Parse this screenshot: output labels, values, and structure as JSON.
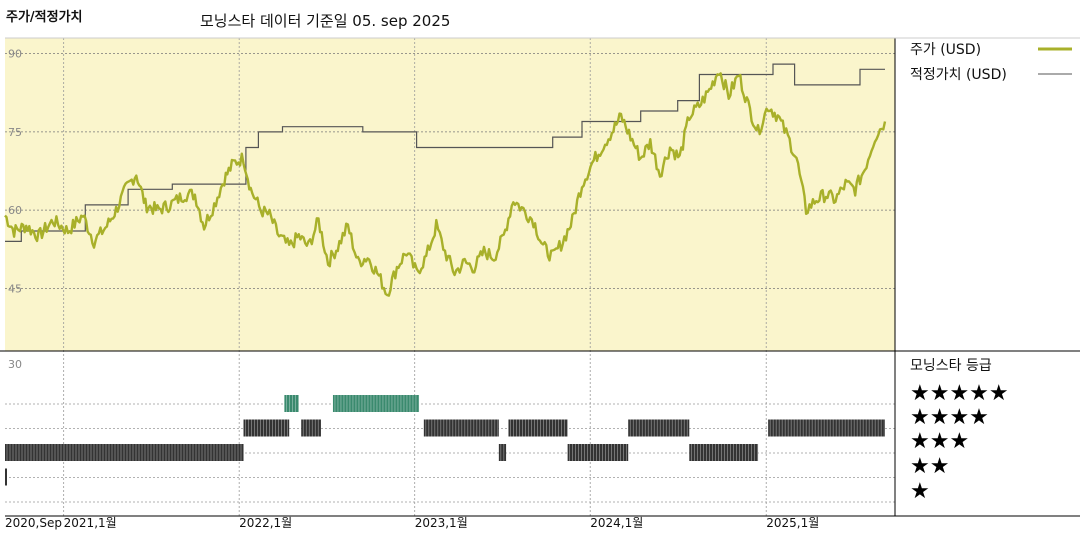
{
  "title": "주가/적정가치",
  "subtitle": "모닝스타 데이터 기준일 05. sep 2025",
  "legend": {
    "price_label": "주가 (USD)",
    "fair_label": "적정가치 (USD)",
    "rating_title": "모닝스타 등급",
    "stars": [
      "★★★★★",
      "★★★★",
      "★★★",
      "★★",
      "★"
    ]
  },
  "colors": {
    "price": "#a8b02a",
    "fair": "#555555",
    "plot_bg": "#faf5cc",
    "rating_dark": "#333333",
    "rating_teal": "#3a8a6e"
  },
  "chart_data": {
    "type": "line",
    "x_range": [
      "2020-09-01",
      "2025-09-05"
    ],
    "x_ticks": [
      {
        "date": "2020-09-01",
        "label": "2020,Sep"
      },
      {
        "date": "2021-01-01",
        "label": "2021,1월"
      },
      {
        "date": "2022-01-01",
        "label": "2022,1월"
      },
      {
        "date": "2023-01-01",
        "label": "2023,1월"
      },
      {
        "date": "2024-01-01",
        "label": "2024,1월"
      },
      {
        "date": "2025-01-01",
        "label": "2025,1월"
      }
    ],
    "y_ticks": [
      {
        "value": 90,
        "label": "90"
      },
      {
        "value": 75,
        "label": "75"
      },
      {
        "value": 60,
        "label": "60"
      },
      {
        "value": 45,
        "label": "45"
      }
    ],
    "ylim": [
      33,
      93
    ],
    "series": [
      {
        "name": "주가 (USD)",
        "points": [
          [
            "2020-09-01",
            59
          ],
          [
            "2020-09-20",
            56
          ],
          [
            "2020-10-15",
            57
          ],
          [
            "2020-11-10",
            55
          ],
          [
            "2020-12-10",
            58
          ],
          [
            "2021-01-10",
            56
          ],
          [
            "2021-02-10",
            59
          ],
          [
            "2021-03-05",
            54
          ],
          [
            "2021-04-01",
            57
          ],
          [
            "2021-04-20",
            60
          ],
          [
            "2021-05-10",
            64
          ],
          [
            "2021-06-01",
            67
          ],
          [
            "2021-06-20",
            61
          ],
          [
            "2021-07-15",
            60
          ],
          [
            "2021-08-10",
            61
          ],
          [
            "2021-09-10",
            63
          ],
          [
            "2021-10-01",
            63
          ],
          [
            "2021-10-20",
            57
          ],
          [
            "2021-11-10",
            61
          ],
          [
            "2021-12-01",
            66
          ],
          [
            "2021-12-20",
            69
          ],
          [
            "2022-01-10",
            70
          ],
          [
            "2022-01-25",
            64
          ],
          [
            "2022-02-15",
            60
          ],
          [
            "2022-03-05",
            59
          ],
          [
            "2022-03-25",
            55
          ],
          [
            "2022-04-15",
            53
          ],
          [
            "2022-05-05",
            55
          ],
          [
            "2022-05-25",
            53
          ],
          [
            "2022-06-15",
            58
          ],
          [
            "2022-07-05",
            50
          ],
          [
            "2022-07-25",
            53
          ],
          [
            "2022-08-15",
            57
          ],
          [
            "2022-09-05",
            50
          ],
          [
            "2022-09-25",
            51
          ],
          [
            "2022-10-15",
            48
          ],
          [
            "2022-11-05",
            44
          ],
          [
            "2022-11-25",
            49
          ],
          [
            "2022-12-15",
            52
          ],
          [
            "2023-01-05",
            48
          ],
          [
            "2023-01-25",
            51
          ],
          [
            "2023-02-15",
            57
          ],
          [
            "2023-03-05",
            52
          ],
          [
            "2023-03-25",
            48
          ],
          [
            "2023-04-15",
            50
          ],
          [
            "2023-05-05",
            49
          ],
          [
            "2023-05-25",
            52
          ],
          [
            "2023-06-15",
            51
          ],
          [
            "2023-07-05",
            55
          ],
          [
            "2023-07-25",
            62
          ],
          [
            "2023-08-15",
            60
          ],
          [
            "2023-09-05",
            58
          ],
          [
            "2023-09-25",
            53
          ],
          [
            "2023-10-15",
            51
          ],
          [
            "2023-11-05",
            54
          ],
          [
            "2023-11-25",
            58
          ],
          [
            "2023-12-15",
            65
          ],
          [
            "2024-01-05",
            69
          ],
          [
            "2024-01-25",
            72
          ],
          [
            "2024-02-15",
            75
          ],
          [
            "2024-03-05",
            78
          ],
          [
            "2024-03-25",
            74
          ],
          [
            "2024-04-15",
            70
          ],
          [
            "2024-05-05",
            73
          ],
          [
            "2024-05-25",
            67
          ],
          [
            "2024-06-15",
            72
          ],
          [
            "2024-07-05",
            70
          ],
          [
            "2024-07-25",
            78
          ],
          [
            "2024-08-15",
            80
          ],
          [
            "2024-09-05",
            83
          ],
          [
            "2024-09-25",
            87
          ],
          [
            "2024-10-15",
            82
          ],
          [
            "2024-11-05",
            86
          ],
          [
            "2024-11-25",
            80
          ],
          [
            "2024-12-15",
            75
          ],
          [
            "2025-01-05",
            80
          ],
          [
            "2025-01-25",
            78
          ],
          [
            "2025-02-15",
            74
          ],
          [
            "2025-03-05",
            70
          ],
          [
            "2025-03-25",
            60
          ],
          [
            "2025-04-15",
            62
          ],
          [
            "2025-05-05",
            63
          ],
          [
            "2025-05-25",
            62
          ],
          [
            "2025-06-15",
            65
          ],
          [
            "2025-07-05",
            64
          ],
          [
            "2025-07-25",
            68
          ],
          [
            "2025-08-15",
            74
          ],
          [
            "2025-09-05",
            77
          ]
        ]
      },
      {
        "name": "적정가치 (USD)",
        "points": [
          [
            "2020-09-01",
            54
          ],
          [
            "2020-10-05",
            54
          ],
          [
            "2020-10-05",
            56
          ],
          [
            "2021-02-15",
            56
          ],
          [
            "2021-02-15",
            61
          ],
          [
            "2021-05-15",
            61
          ],
          [
            "2021-05-15",
            64
          ],
          [
            "2021-08-15",
            64
          ],
          [
            "2021-08-15",
            65
          ],
          [
            "2022-01-15",
            65
          ],
          [
            "2022-01-15",
            72
          ],
          [
            "2022-02-10",
            72
          ],
          [
            "2022-02-10",
            75
          ],
          [
            "2022-04-01",
            75
          ],
          [
            "2022-04-01",
            76
          ],
          [
            "2022-09-15",
            76
          ],
          [
            "2022-09-15",
            75
          ],
          [
            "2023-01-05",
            75
          ],
          [
            "2023-01-05",
            72
          ],
          [
            "2023-10-15",
            72
          ],
          [
            "2023-10-15",
            74
          ],
          [
            "2023-12-15",
            74
          ],
          [
            "2023-12-15",
            77
          ],
          [
            "2024-04-15",
            77
          ],
          [
            "2024-04-15",
            79
          ],
          [
            "2024-07-01",
            79
          ],
          [
            "2024-07-01",
            81
          ],
          [
            "2024-08-15",
            81
          ],
          [
            "2024-08-15",
            86
          ],
          [
            "2025-01-15",
            86
          ],
          [
            "2025-01-15",
            88
          ],
          [
            "2025-03-01",
            88
          ],
          [
            "2025-03-01",
            84
          ],
          [
            "2025-07-15",
            84
          ],
          [
            "2025-07-15",
            87
          ],
          [
            "2025-09-05",
            87
          ]
        ]
      }
    ],
    "ratings": [
      {
        "stars": 3,
        "start": "2020-09-01",
        "end": "2022-01-10"
      },
      {
        "stars": 2,
        "start": "2020-09-01",
        "end": "2020-09-05"
      },
      {
        "stars": 4,
        "start": "2022-01-10",
        "end": "2022-04-15"
      },
      {
        "stars": 5,
        "start": "2022-04-05",
        "end": "2022-05-05"
      },
      {
        "stars": 4,
        "start": "2022-05-10",
        "end": "2022-06-20"
      },
      {
        "stars": 5,
        "start": "2022-07-15",
        "end": "2023-01-10"
      },
      {
        "stars": 4,
        "start": "2023-01-20",
        "end": "2023-06-25"
      },
      {
        "stars": 3,
        "start": "2023-06-25",
        "end": "2023-07-10"
      },
      {
        "stars": 4,
        "start": "2023-07-15",
        "end": "2023-11-15"
      },
      {
        "stars": 3,
        "start": "2023-11-15",
        "end": "2024-03-20"
      },
      {
        "stars": 4,
        "start": "2024-03-20",
        "end": "2024-07-25"
      },
      {
        "stars": 3,
        "start": "2024-07-25",
        "end": "2024-12-15"
      },
      {
        "stars": 4,
        "start": "2025-01-05",
        "end": "2025-09-05"
      }
    ],
    "rating_axis_label": "30",
    "grid": true,
    "legend_position": "right"
  }
}
